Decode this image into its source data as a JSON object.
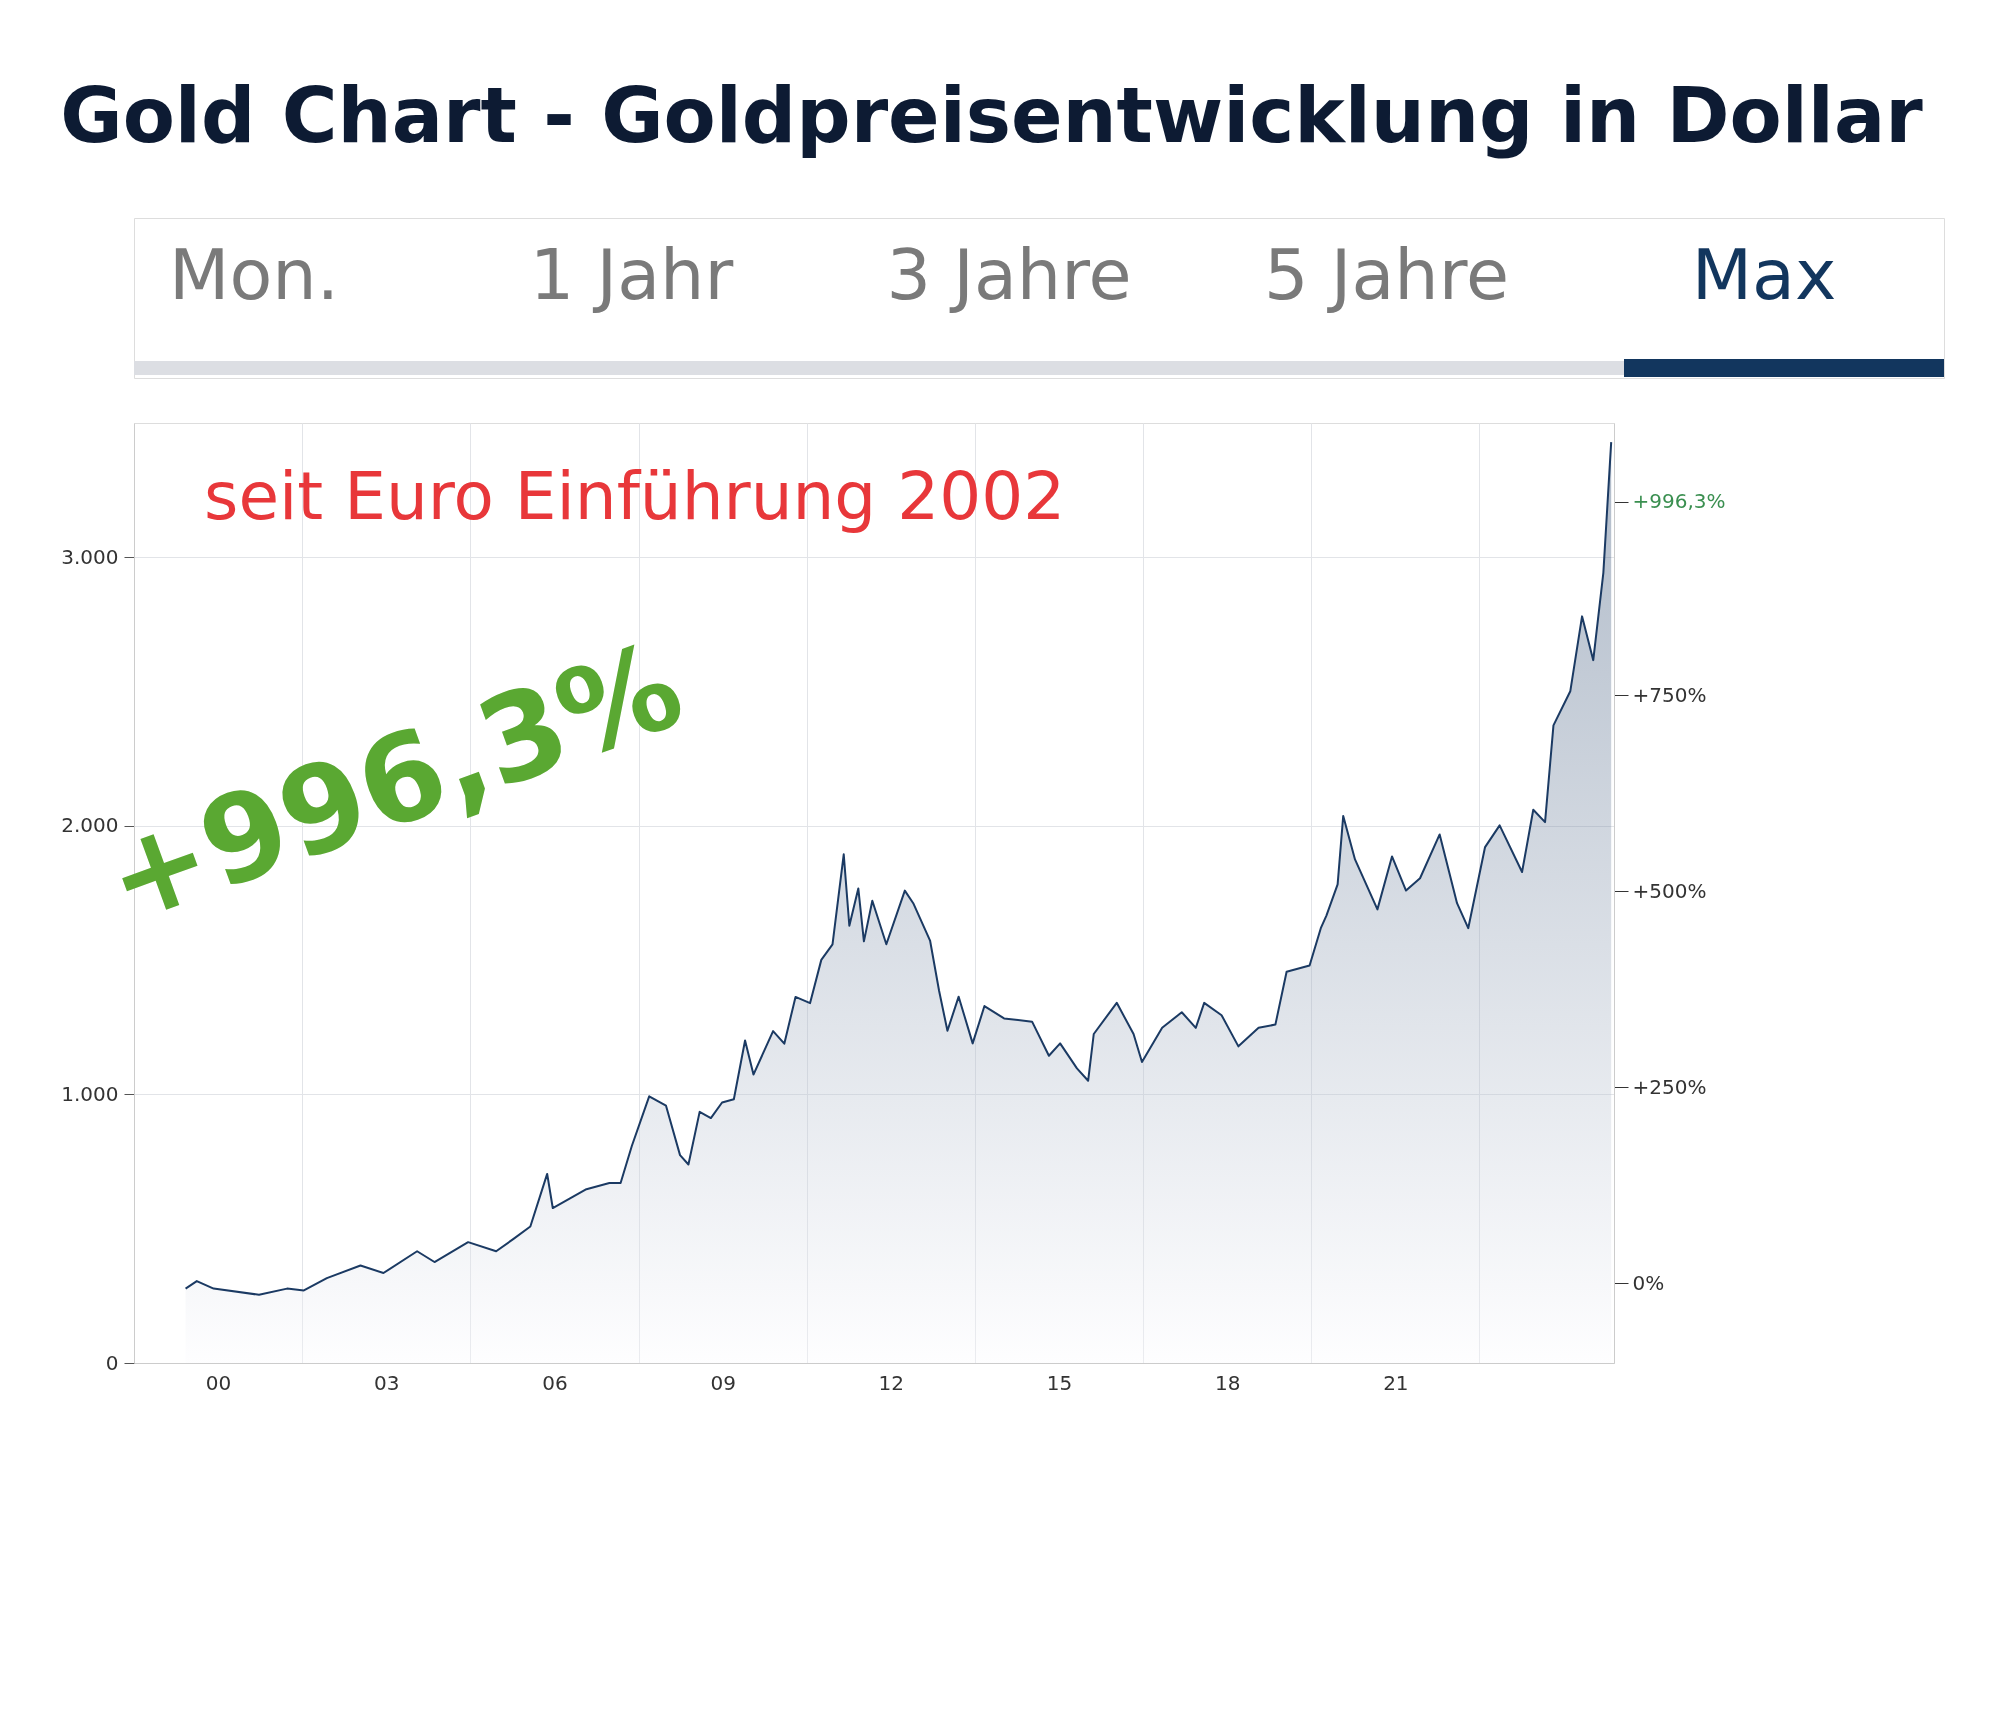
{
  "chart_data": {
    "type": "area",
    "title": "Gold Chart - Goldpreisentwicklung in Dollar",
    "annotations": [
      "Mon.",
      "1 Jahr",
      "3 Jahre",
      "5 Jahre",
      "Max",
      "seit Euro Einführung 2002",
      "+996,3%"
    ],
    "x": [
      1999.42,
      1999.62,
      1999.92,
      2000.73,
      2001.23,
      2001.53,
      2001.94,
      2002.54,
      2002.95,
      2003.55,
      2003.86,
      2004.46,
      2004.96,
      2005.27,
      2005.57,
      2005.87,
      2005.97,
      2006.27,
      2006.57,
      2006.98,
      2007.18,
      2007.38,
      2007.69,
      2007.99,
      2008.24,
      2008.39,
      2008.59,
      2008.79,
      2008.99,
      2009.2,
      2009.4,
      2009.55,
      2009.9,
      2010.1,
      2010.3,
      2010.56,
      2010.76,
      2010.96,
      2011.16,
      2011.26,
      2011.42,
      2011.52,
      2011.67,
      2011.92,
      2012.25,
      2012.4,
      2012.7,
      2012.86,
      2013.01,
      2013.21,
      2013.46,
      2013.67,
      2014.02,
      2014.52,
      2014.82,
      2015.02,
      2015.32,
      2015.52,
      2015.62,
      2016.03,
      2016.33,
      2016.48,
      2016.84,
      2017.19,
      2017.44,
      2017.59,
      2017.9,
      2018.2,
      2018.56,
      2018.86,
      2019.06,
      2019.47,
      2019.67,
      2019.77,
      2019.97,
      2020.07,
      2020.28,
      2020.68,
      2020.94,
      2021.19,
      2021.44,
      2021.79,
      2022.1,
      2022.3,
      2022.6,
      2022.86,
      2023.26,
      2023.46,
      2023.67,
      2023.82,
      2024.12,
      2024.33,
      2024.53,
      2024.71,
      2024.83,
      2024.85
    ],
    "series": [
      {
        "color": "#1b3a63",
        "values": [
          277,
          305,
          277,
          254,
          277,
          270,
          316,
          363,
          335,
          416,
          376,
          450,
          416,
          462,
          508,
          704,
          577,
          612,
          647,
          670,
          670,
          808,
          993,
          958,
          774,
          739,
          935,
          912,
          970,
          982,
          1201,
          1074,
          1236,
          1189,
          1363,
          1340,
          1501,
          1559,
          1894,
          1628,
          1767,
          1570,
          1721,
          1559,
          1759,
          1712,
          1573,
          1387,
          1237,
          1364,
          1190,
          1329,
          1283,
          1271,
          1144,
          1190,
          1097,
          1051,
          1225,
          1341,
          1225,
          1121,
          1248,
          1306,
          1248,
          1341,
          1295,
          1179,
          1248,
          1260,
          1457,
          1480,
          1619,
          1666,
          1782,
          2037,
          1875,
          1689,
          1886,
          1759,
          1805,
          1968,
          1712,
          1619,
          1921,
          2002,
          1828,
          2060,
          2014,
          2374,
          2501,
          2780,
          2617,
          2942,
          3360,
          3429
        ]
      }
    ],
    "xlim": [
      1998.5,
      2024.9
    ],
    "xticks": [
      {
        "value": 2000,
        "label": "00"
      },
      {
        "value": 2001.5,
        "label": null
      },
      {
        "value": 2003,
        "label": "03"
      },
      {
        "value": 2004.5,
        "label": null
      },
      {
        "value": 2006,
        "label": "06"
      },
      {
        "value": 2007.5,
        "label": null
      },
      {
        "value": 2009,
        "label": "09"
      },
      {
        "value": 2010.5,
        "label": null
      },
      {
        "value": 2012,
        "label": "12"
      },
      {
        "value": 2013.5,
        "label": null
      },
      {
        "value": 2015,
        "label": "15"
      },
      {
        "value": 2016.5,
        "label": null
      },
      {
        "value": 2018,
        "label": "18"
      },
      {
        "value": 2019.5,
        "label": null
      },
      {
        "value": 2021,
        "label": "21"
      },
      {
        "value": 2022.5,
        "label": null
      }
    ],
    "ylim": [
      0,
      3500
    ],
    "yticks": [
      0,
      {
        "value": 1000,
        "label": "1.000"
      },
      {
        "value": 2000,
        "label": "2.000"
      },
      {
        "value": 3000,
        "label": "3.000"
      }
    ],
    "y2lim": [
      -102,
      1097
    ],
    "y2ticks": [
      {
        "value": 0,
        "label": "0%"
      },
      {
        "value": 250,
        "label": "+250%"
      },
      {
        "value": 500,
        "label": "+500%"
      },
      {
        "value": 750,
        "label": "+750%"
      },
      {
        "value": 996.3,
        "label": "+996,3%"
      }
    ],
    "grid": true
  }
}
